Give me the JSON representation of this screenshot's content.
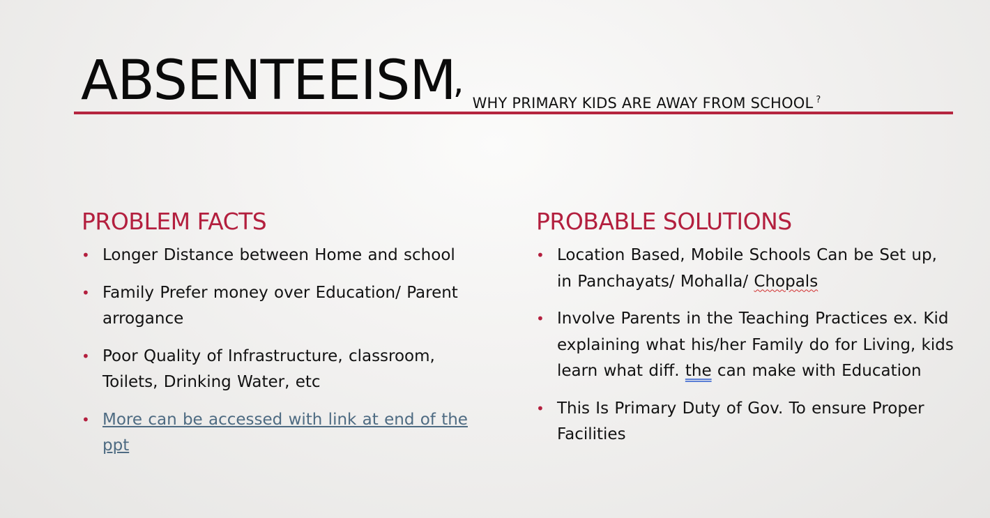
{
  "slide": {
    "title": "ABSENTEEISM",
    "title_comma": ",",
    "subtitle_prefix": "WHY PRIMARY KIDS ARE AWAY FROM ",
    "subtitle_school": "SCHOOL",
    "subtitle_mark": "?",
    "accent_color": "#b31f3e"
  },
  "left": {
    "heading": "PROBLEM FACTS",
    "items": [
      "Longer Distance between Home and school",
      "Family Prefer money over Education/ Parent arrogance",
      "Poor Quality of Infrastructure, classroom, Toilets, Drinking Water, etc",
      "More can be accessed with link at end of the ppt"
    ]
  },
  "right": {
    "heading": "PROBABLE SOLUTIONS",
    "item1_prefix": "Location Based, Mobile Schools Can be Set up, in Panchayats/ Mohalla/ ",
    "item1_word": "Chopals",
    "item2_prefix": "Involve Parents in the Teaching Practices ex. Kid explaining what his/her Family do for Living, kids learn what diff. ",
    "item2_word": "the",
    "item2_suffix": " can make with Education",
    "item3": "This Is Primary Duty of Gov. To ensure Proper Facilities"
  },
  "bullet_glyph": "•"
}
